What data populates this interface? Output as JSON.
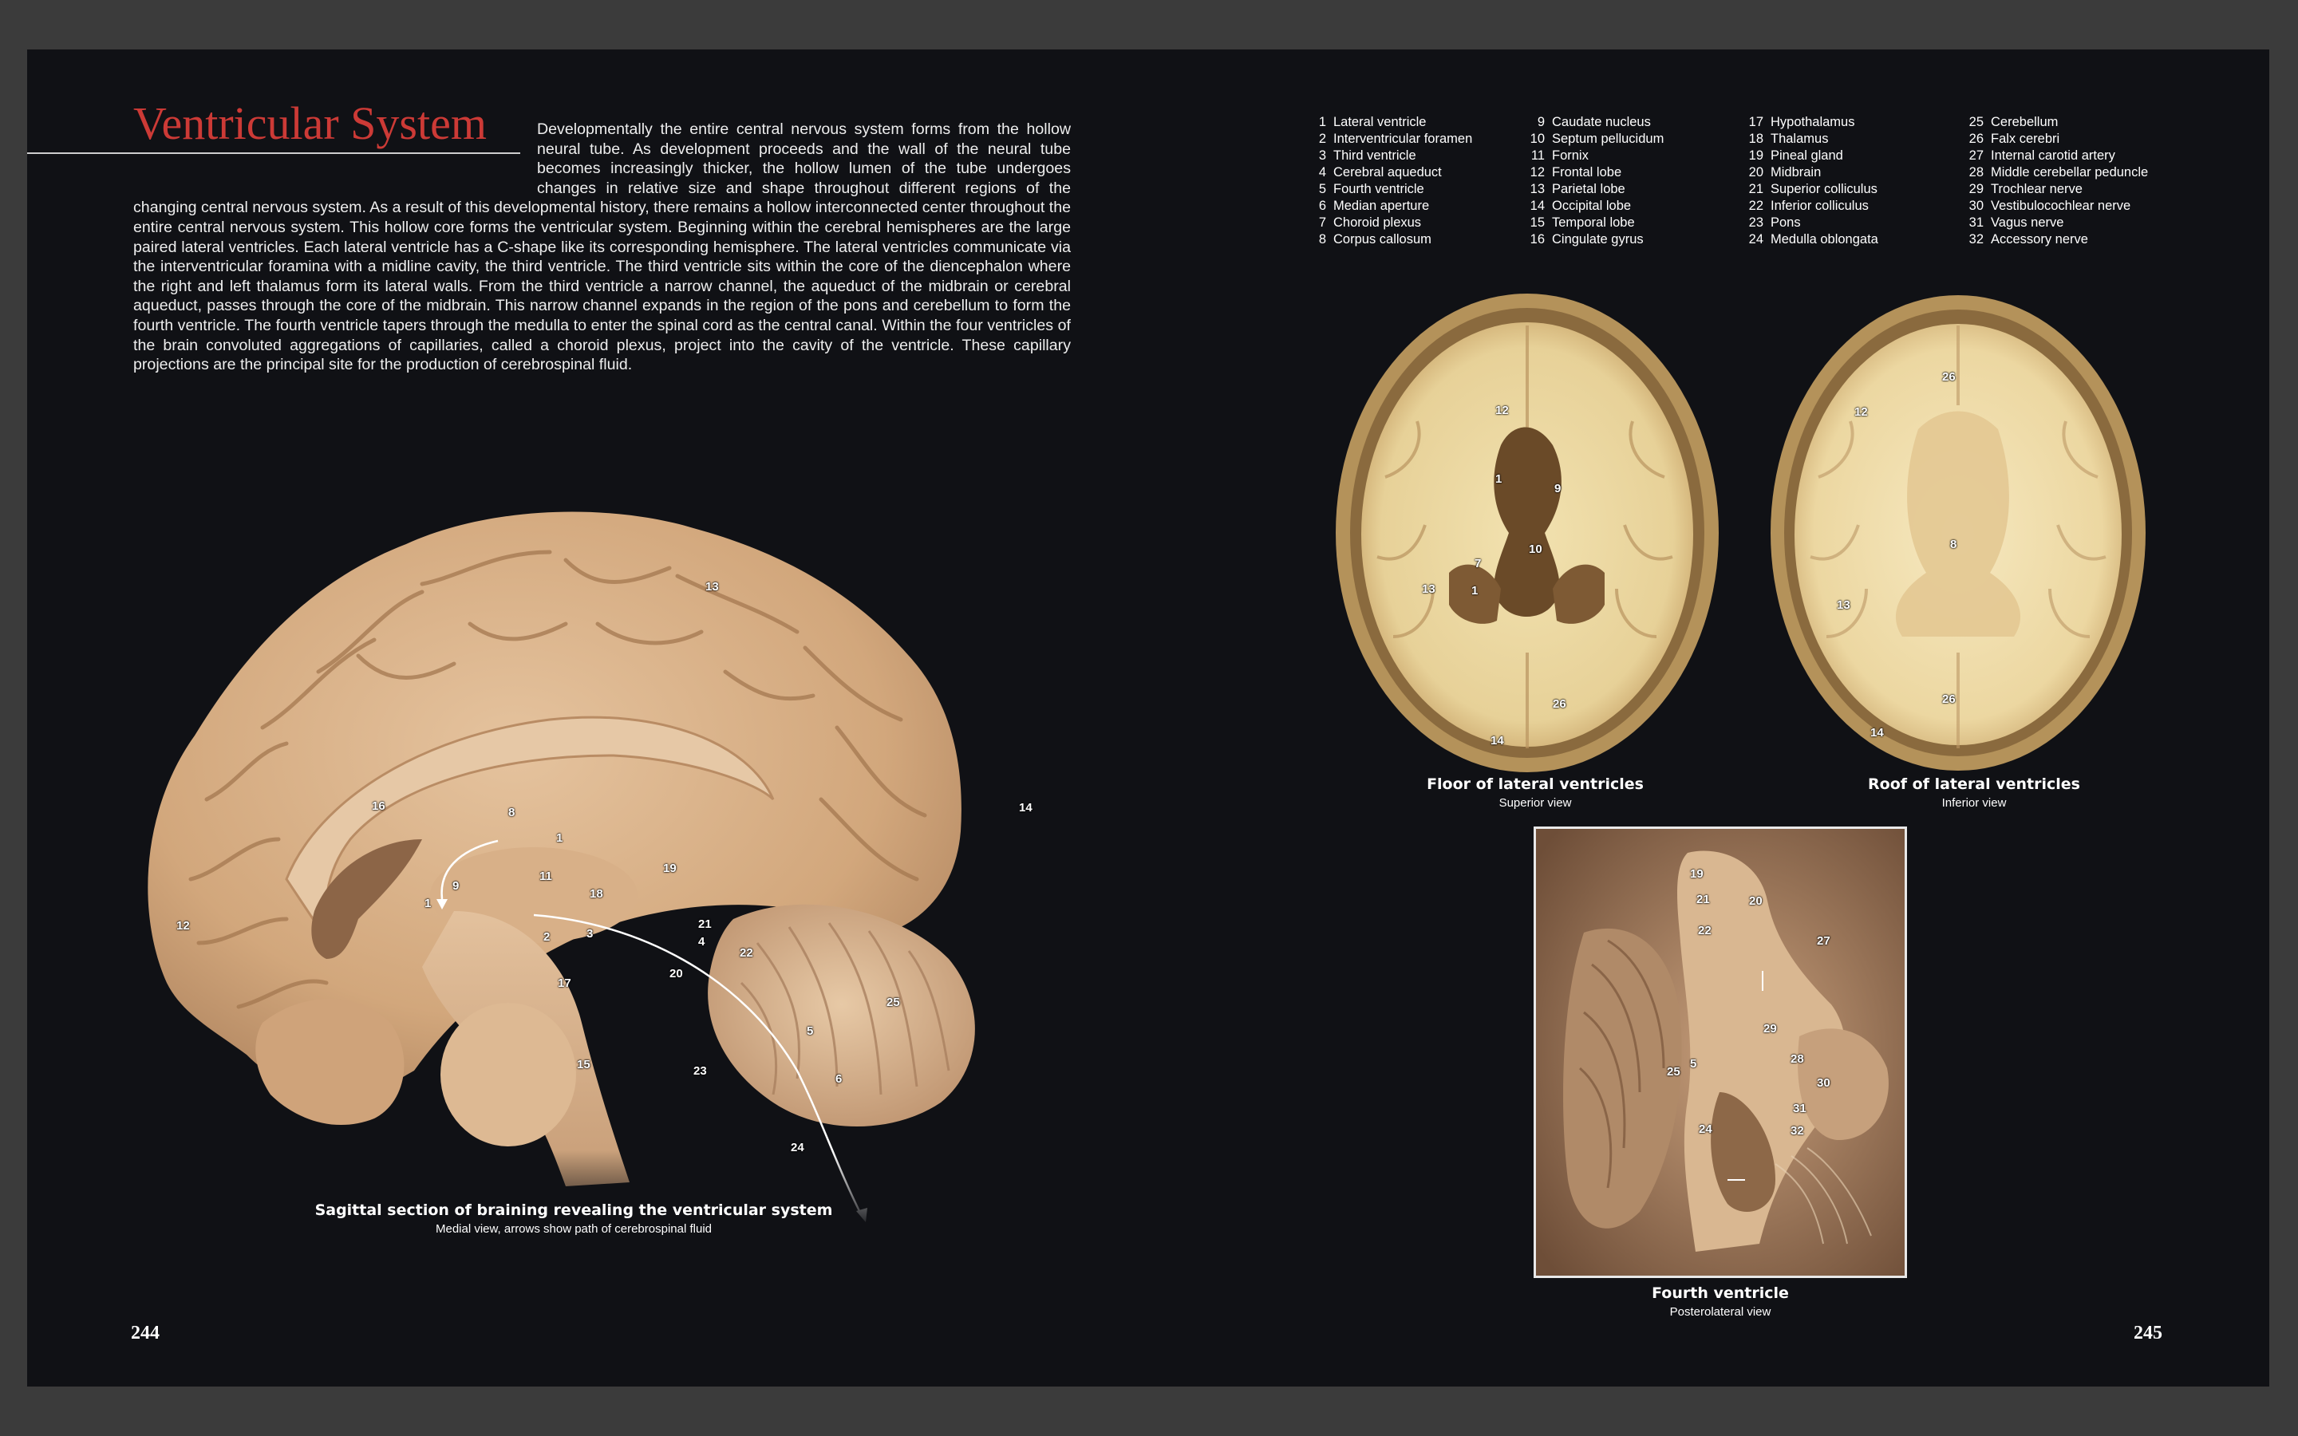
{
  "title": "Ventricular System",
  "intro": "Developmentally the entire central nervous system forms from the hollow neural tube. As development proceeds and the wall of the neural tube becomes increasingly thicker, the hollow lumen of the tube undergoes changes in relative size and shape throughout different regions of the changing central nervous system. As a result of this developmental history, there remains a hollow interconnected center throughout the entire central nervous system. This hollow core forms the ventricular system. Beginning within the cerebral hemispheres are the large paired lateral ventricles. Each lateral ventricle has a C-shape like its corresponding hemisphere. The lateral ventricles communicate via the interventricular foramina with a midline cavity, the third ventricle. The third ventricle sits within the core of the diencephalon where the right and left thalamus form its lateral walls. From the third ventricle a narrow channel, the aqueduct of the midbrain or cerebral aqueduct, passes through the core of the midbrain. This narrow channel expands in the region of the pons and cerebellum to form the fourth ventricle. The fourth ventricle tapers through the medulla to enter the spinal cord as the central canal. Within the four ventricles of the brain convoluted aggregations of capillaries, called a choroid plexus, project into the cavity of the ventricle. These capillary projections are the principal site for the production of cerebrospinal fluid.",
  "legend": [
    {
      "num": "1",
      "name": "Lateral ventricle"
    },
    {
      "num": "2",
      "name": "Interventricular foramen"
    },
    {
      "num": "3",
      "name": "Third ventricle"
    },
    {
      "num": "4",
      "name": "Cerebral aqueduct"
    },
    {
      "num": "5",
      "name": "Fourth ventricle"
    },
    {
      "num": "6",
      "name": "Median aperture"
    },
    {
      "num": "7",
      "name": "Choroid plexus"
    },
    {
      "num": "8",
      "name": "Corpus callosum"
    },
    {
      "num": "9",
      "name": "Caudate nucleus"
    },
    {
      "num": "10",
      "name": "Septum pellucidum"
    },
    {
      "num": "11",
      "name": "Fornix"
    },
    {
      "num": "12",
      "name": "Frontal lobe"
    },
    {
      "num": "13",
      "name": "Parietal lobe"
    },
    {
      "num": "14",
      "name": "Occipital lobe"
    },
    {
      "num": "15",
      "name": "Temporal lobe"
    },
    {
      "num": "16",
      "name": "Cingulate gyrus"
    },
    {
      "num": "17",
      "name": "Hypothalamus"
    },
    {
      "num": "18",
      "name": "Thalamus"
    },
    {
      "num": "19",
      "name": "Pineal gland"
    },
    {
      "num": "20",
      "name": "Midbrain"
    },
    {
      "num": "21",
      "name": "Superior colliculus"
    },
    {
      "num": "22",
      "name": "Inferior colliculus"
    },
    {
      "num": "23",
      "name": "Pons"
    },
    {
      "num": "24",
      "name": "Medulla oblongata"
    },
    {
      "num": "25",
      "name": "Cerebellum"
    },
    {
      "num": "26",
      "name": "Falx cerebri"
    },
    {
      "num": "27",
      "name": "Internal carotid artery"
    },
    {
      "num": "28",
      "name": "Middle cerebellar peduncle"
    },
    {
      "num": "29",
      "name": "Trochlear nerve"
    },
    {
      "num": "30",
      "name": "Vestibulocochlear nerve"
    },
    {
      "num": "31",
      "name": "Vagus nerve"
    },
    {
      "num": "32",
      "name": "Accessory nerve"
    }
  ],
  "figures": {
    "sagittal": {
      "caption_title": "Sagittal section of braining revealing the ventricular system",
      "caption_sub": "Medial view, arrows show path of cerebrospinal fluid",
      "labels": [
        "13",
        "16",
        "8",
        "14",
        "1",
        "19",
        "11",
        "9",
        "18",
        "1",
        "12",
        "21",
        "2",
        "3",
        "4",
        "22",
        "20",
        "17",
        "25",
        "5",
        "15",
        "23",
        "6",
        "24"
      ]
    },
    "floor": {
      "caption_title": "Floor of lateral ventricles",
      "caption_sub": "Superior view",
      "labels": [
        "12",
        "1",
        "9",
        "10",
        "7",
        "13",
        "1",
        "26",
        "14"
      ]
    },
    "roof": {
      "caption_title": "Roof of lateral ventricles",
      "caption_sub": "Inferior view",
      "labels": [
        "26",
        "12",
        "8",
        "13",
        "26",
        "14"
      ]
    },
    "fourth": {
      "caption_title": "Fourth ventricle",
      "caption_sub": "Posterolateral view",
      "labels": [
        "19",
        "21",
        "20",
        "22",
        "27",
        "29",
        "28",
        "25",
        "5",
        "30",
        "31",
        "24",
        "32"
      ]
    }
  },
  "page_left": "244",
  "page_right": "245",
  "colors": {
    "title": "#cc3a36",
    "page": "#101115",
    "tissue": "#dcb48c"
  }
}
